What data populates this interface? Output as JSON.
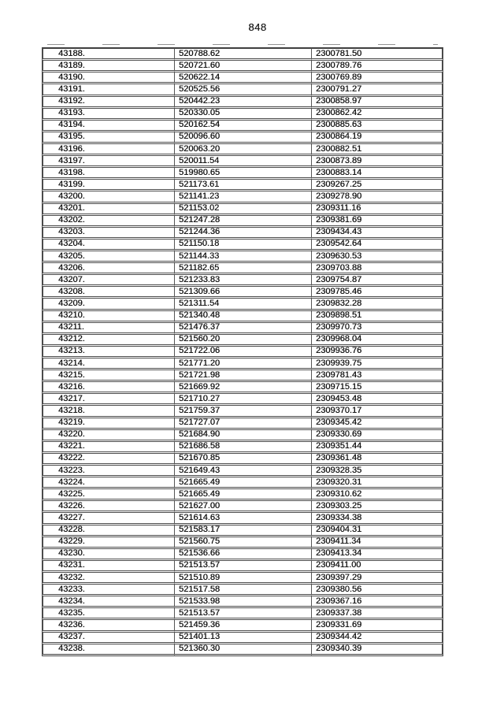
{
  "page": {
    "number": "848"
  },
  "table": {
    "rows": [
      [
        "43188.",
        "520788.62",
        "2300781.50"
      ],
      [
        "43189.",
        "520721.60",
        "2300789.76"
      ],
      [
        "43190.",
        "520622.14",
        "2300769.89"
      ],
      [
        "43191.",
        "520525.56",
        "2300791.27"
      ],
      [
        "43192.",
        "520442.23",
        "2300858.97"
      ],
      [
        "43193.",
        "520330.05",
        "2300862.42"
      ],
      [
        "43194.",
        "520162.54",
        "2300885.63"
      ],
      [
        "43195.",
        "520096.60",
        "2300864.19"
      ],
      [
        "43196.",
        "520063.20",
        "2300882.51"
      ],
      [
        "43197.",
        "520011.54",
        "2300873.89"
      ],
      [
        "43198.",
        "519980.65",
        "2300883.14"
      ],
      [
        "43199.",
        "521173.61",
        "2309267.25"
      ],
      [
        "43200.",
        "521141.23",
        "2309278.90"
      ],
      [
        "43201.",
        "521153.02",
        "2309311.16"
      ],
      [
        "43202.",
        "521247.28",
        "2309381.69"
      ],
      [
        "43203.",
        "521244.36",
        "2309434.43"
      ],
      [
        "43204.",
        "521150.18",
        "2309542.64"
      ],
      [
        "43205.",
        "521144.33",
        "2309630.53"
      ],
      [
        "43206.",
        "521182.65",
        "2309703.88"
      ],
      [
        "43207.",
        "521233.83",
        "2309754.87"
      ],
      [
        "43208.",
        "521309.66",
        "2309785.46"
      ],
      [
        "43209.",
        "521311.54",
        "2309832.28"
      ],
      [
        "43210.",
        "521340.48",
        "2309898.51"
      ],
      [
        "43211.",
        "521476.37",
        "2309970.73"
      ],
      [
        "43212.",
        "521560.20",
        "2309968.04"
      ],
      [
        "43213.",
        "521722.06",
        "2309936.76"
      ],
      [
        "43214.",
        "521771.20",
        "2309939.75"
      ],
      [
        "43215.",
        "521721.98",
        "2309781.43"
      ],
      [
        "43216.",
        "521669.92",
        "2309715.15"
      ],
      [
        "43217.",
        "521710.27",
        "2309453.48"
      ],
      [
        "43218.",
        "521759.37",
        "2309370.17"
      ],
      [
        "43219.",
        "521727.07",
        "2309345.42"
      ],
      [
        "43220.",
        "521684.90",
        "2309330.69"
      ],
      [
        "43221.",
        "521686.58",
        "2309351.44"
      ],
      [
        "43222.",
        "521670.85",
        "2309361.48"
      ],
      [
        "43223.",
        "521649.43",
        "2309328.35"
      ],
      [
        "43224.",
        "521665.49",
        "2309320.31"
      ],
      [
        "43225.",
        "521665.49",
        "2309310.62"
      ],
      [
        "43226.",
        "521627.00",
        "2309303.25"
      ],
      [
        "43227.",
        "521614.63",
        "2309334.38"
      ],
      [
        "43228.",
        "521583.17",
        "2309404.31"
      ],
      [
        "43229.",
        "521560.75",
        "2309411.34"
      ],
      [
        "43230.",
        "521536.66",
        "2309413.34"
      ],
      [
        "43231.",
        "521513.57",
        "2309411.00"
      ],
      [
        "43232.",
        "521510.89",
        "2309397.29"
      ],
      [
        "43233.",
        "521517.58",
        "2309380.56"
      ],
      [
        "43234.",
        "521533.98",
        "2309367.16"
      ],
      [
        "43235.",
        "521513.57",
        "2309337.38"
      ],
      [
        "43236.",
        "521459.36",
        "2309331.69"
      ],
      [
        "43237.",
        "521401.13",
        "2309344.42"
      ],
      [
        "43238.",
        "521360.30",
        "2309340.39"
      ]
    ]
  }
}
